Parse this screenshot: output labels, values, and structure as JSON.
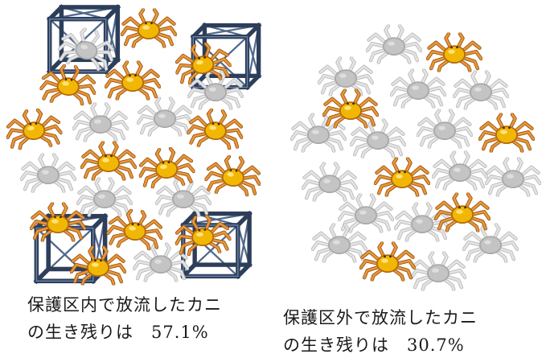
{
  "captions": {
    "inside": {
      "line1": "保護区内で放流したカニ",
      "line2": "の生き残りは　57.1%"
    },
    "outside": {
      "line1": "保護区外で放流したカニ",
      "line2": "の生き残りは　30.7%"
    }
  },
  "survival_rate": {
    "inside_protected_area": "57.1%",
    "outside_protected_area": "30.7%"
  },
  "colors": {
    "surviving_crab_legs": "#d9822b",
    "surviving_crab_body": "#f2b705",
    "lost_crab": "#c9c9c9",
    "cage": "#2d3e5a"
  },
  "icons": {
    "surviving_crab": "crab-orange-icon",
    "lost_crab": "crab-gray-icon",
    "cage": "cage-icon"
  }
}
